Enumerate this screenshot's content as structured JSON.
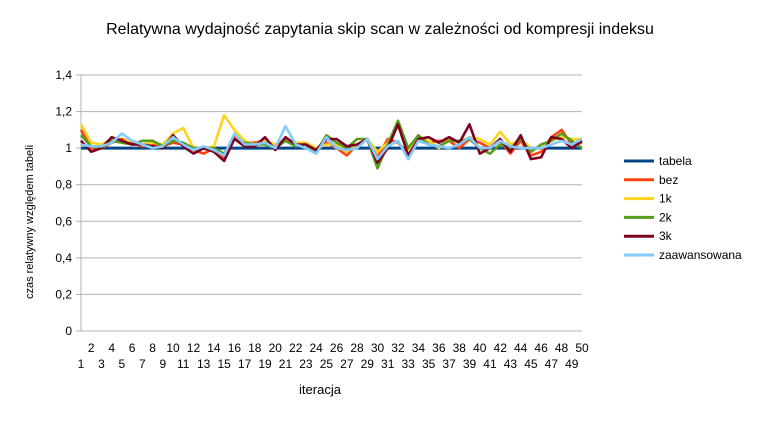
{
  "chart_data": {
    "type": "line",
    "title": "Relatywna wydajność zapytania skip scan w zależności od kompresji indeksu",
    "xlabel": "iteracja",
    "ylabel": "czas relatywny względem tabeli",
    "ylim": [
      0,
      1.4
    ],
    "y_ticks": [
      "0",
      "0,2",
      "0,4",
      "0,6",
      "0,8",
      "1",
      "1,2",
      "1,4"
    ],
    "y_tick_values": [
      0,
      0.2,
      0.4,
      0.6,
      0.8,
      1.0,
      1.2,
      1.4
    ],
    "x": [
      1,
      2,
      3,
      4,
      5,
      6,
      7,
      8,
      9,
      10,
      11,
      12,
      13,
      14,
      15,
      16,
      17,
      18,
      19,
      20,
      21,
      22,
      23,
      24,
      25,
      26,
      27,
      28,
      29,
      30,
      31,
      32,
      33,
      34,
      35,
      36,
      37,
      38,
      39,
      40,
      41,
      42,
      43,
      44,
      45,
      46,
      47,
      48,
      49,
      50
    ],
    "grid": true,
    "legend_position": "right",
    "series": [
      {
        "name": "tabela",
        "color": "#004586",
        "values": [
          1,
          1,
          1,
          1,
          1,
          1,
          1,
          1,
          1,
          1,
          1,
          1,
          1,
          1,
          1,
          1,
          1,
          1,
          1,
          1,
          1,
          1,
          1,
          1,
          1,
          1,
          1,
          1,
          1,
          1,
          1,
          1,
          1,
          1,
          1,
          1,
          1,
          1,
          1,
          1,
          1,
          1,
          1,
          1,
          1,
          1,
          1,
          1,
          1,
          1
        ]
      },
      {
        "name": "bez",
        "color": "#ff420e",
        "values": [
          1.1,
          1.0,
          1.0,
          1.03,
          1.05,
          1.03,
          1.01,
          1.02,
          1.01,
          1.03,
          1.02,
          0.99,
          0.97,
          1.0,
          0.95,
          1.07,
          1.03,
          1.03,
          1.04,
          1.01,
          1.05,
          1.02,
          1.02,
          1.0,
          1.03,
          1.0,
          0.96,
          1.02,
          1.05,
          0.95,
          1.05,
          1.03,
          0.97,
          1.04,
          1.03,
          1.04,
          1.04,
          1.0,
          1.05,
          1.03,
          1.0,
          1.04,
          0.97,
          1.04,
          0.96,
          0.98,
          1.06,
          1.1,
          1.02,
          1.03
        ]
      },
      {
        "name": "1k",
        "color": "#ffd320",
        "values": [
          1.13,
          1.03,
          1.02,
          1.05,
          1.04,
          1.04,
          1.02,
          1.03,
          1.02,
          1.08,
          1.11,
          1.0,
          1.0,
          1.01,
          1.18,
          1.1,
          1.04,
          1.02,
          1.04,
          1.02,
          1.05,
          1.03,
          1.03,
          1.0,
          1.02,
          1.02,
          0.98,
          1.02,
          1.05,
          0.98,
          1.03,
          1.13,
          0.98,
          1.05,
          1.04,
          1.0,
          1.05,
          1.03,
          1.06,
          1.05,
          1.02,
          1.09,
          1.02,
          1.05,
          1.0,
          1.0,
          1.04,
          1.06,
          1.05,
          1.05
        ]
      },
      {
        "name": "2k",
        "color": "#579d1c",
        "values": [
          1.07,
          1.01,
          1.0,
          1.04,
          1.03,
          1.02,
          1.04,
          1.04,
          1.01,
          1.04,
          1.03,
          1.0,
          1.0,
          1.0,
          0.97,
          1.05,
          1.03,
          1.02,
          1.02,
          1.0,
          1.04,
          1.01,
          1.02,
          0.98,
          1.07,
          1.03,
          1.0,
          1.05,
          1.05,
          0.89,
          1.02,
          1.15,
          1.0,
          1.07,
          1.02,
          1.01,
          1.04,
          1.04,
          1.05,
          1.0,
          0.97,
          1.02,
          1.0,
          1.05,
          0.98,
          1.02,
          1.04,
          1.08,
          1.04,
          1.0
        ]
      },
      {
        "name": "3k",
        "color": "#7e0021",
        "values": [
          1.04,
          0.98,
          1.0,
          1.06,
          1.04,
          1.02,
          1.02,
          1.01,
          1.0,
          1.07,
          1.01,
          0.97,
          1.0,
          0.98,
          0.93,
          1.05,
          1.01,
          1.01,
          1.06,
          0.99,
          1.06,
          1.02,
          1.02,
          0.99,
          1.05,
          1.05,
          1.01,
          1.02,
          1.05,
          0.92,
          1.0,
          1.13,
          0.96,
          1.05,
          1.06,
          1.03,
          1.06,
          1.03,
          1.13,
          0.97,
          1.0,
          1.05,
          0.98,
          1.07,
          0.94,
          0.95,
          1.06,
          1.05,
          1.0,
          1.04
        ]
      },
      {
        "name": "zaawansowana",
        "color": "#83caff",
        "values": [
          1.02,
          1.01,
          1.01,
          1.03,
          1.08,
          1.04,
          1.02,
          1.0,
          1.01,
          1.06,
          1.02,
          0.99,
          1.01,
          0.99,
          0.96,
          1.08,
          1.02,
          1.02,
          1.03,
          1.0,
          1.12,
          1.02,
          1.0,
          0.97,
          1.06,
          1.0,
          0.99,
          1.0,
          1.05,
          0.94,
          1.01,
          1.04,
          0.94,
          1.04,
          1.02,
          1.01,
          1.0,
          1.02,
          1.06,
          1.0,
          1.0,
          1.04,
          1.01,
          1.0,
          1.0,
          1.0,
          1.02,
          1.04,
          1.02,
          1.05
        ]
      }
    ]
  }
}
